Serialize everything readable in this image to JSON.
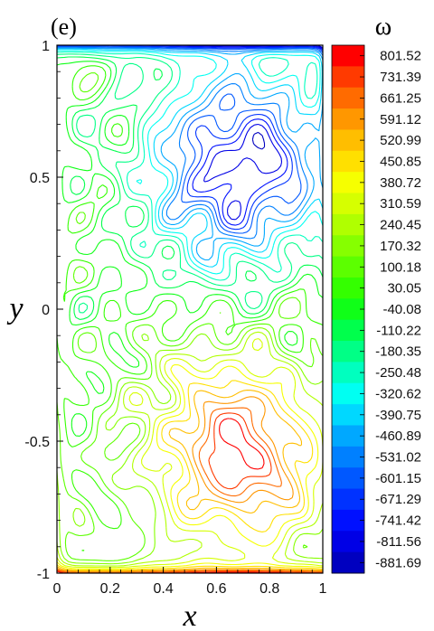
{
  "panel_label": "(e)",
  "chart_data": {
    "type": "contour",
    "xlabel": "x",
    "ylabel": "y",
    "xlim": [
      0,
      1
    ],
    "ylim": [
      -1,
      1
    ],
    "xticks": [
      "0",
      "0.2",
      "0.4",
      "0.6",
      "0.8",
      "1"
    ],
    "yticks": [
      "-1",
      "-0.5",
      "0",
      "0.5",
      "1"
    ],
    "xtick_values": [
      0,
      0.2,
      0.4,
      0.6,
      0.8,
      1
    ],
    "ytick_values": [
      -1,
      -0.5,
      0,
      0.5,
      1
    ],
    "colorbar_title": "ω",
    "colorbar_levels": [
      "801.52",
      "731.39",
      "661.25",
      "591.12",
      "520.99",
      "450.85",
      "380.72",
      "310.59",
      "240.45",
      "170.32",
      "100.18",
      "30.05",
      "-40.08",
      "-110.22",
      "-180.35",
      "-250.48",
      "-320.62",
      "-390.75",
      "-460.89",
      "-531.02",
      "-601.15",
      "-671.29",
      "-741.42",
      "-811.56",
      "-881.69"
    ],
    "colorbar_colors": [
      "#ff0000",
      "#ff3a00",
      "#ff6b00",
      "#ff9700",
      "#ffbe00",
      "#ffe000",
      "#f6ff00",
      "#d6ff00",
      "#b0ff00",
      "#86ff00",
      "#5cff00",
      "#34ff00",
      "#10ff18",
      "#00ff4c",
      "#00ff86",
      "#00ffbf",
      "#00fff2",
      "#00d8ff",
      "#00a8ff",
      "#0080ff",
      "#0058ff",
      "#0032ff",
      "#0010ff",
      "#0000e6",
      "#0000c0"
    ],
    "vortices": [
      {
        "sign": "positive",
        "center": [
          0.68,
          -0.55
        ],
        "peak": 801.52
      },
      {
        "sign": "negative",
        "center": [
          0.68,
          0.55
        ],
        "peak": -881.69
      }
    ],
    "grid": false
  }
}
